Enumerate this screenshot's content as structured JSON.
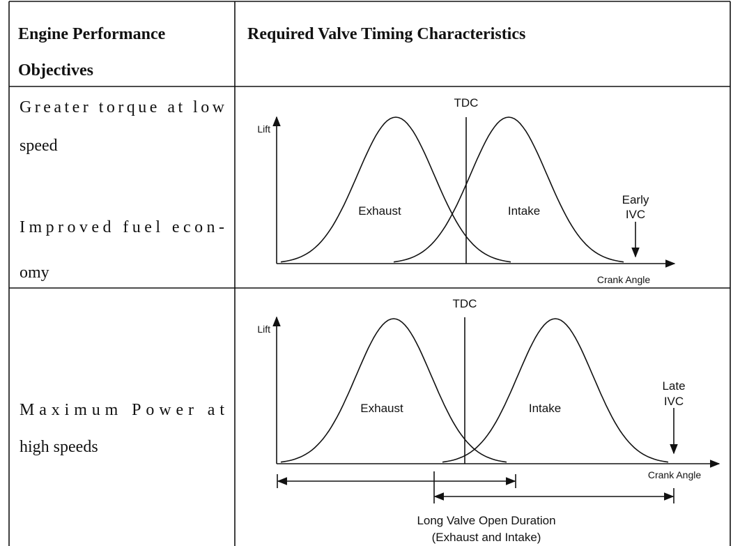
{
  "table": {
    "header": [
      [
        "Engine Performance",
        "Objectives"
      ],
      [
        "Required Valve Timing Characteristics"
      ]
    ],
    "rows": [
      {
        "objectives": [
          [
            "Greater torque at low",
            "speed"
          ],
          [
            "Improved fuel econ-",
            "omy"
          ]
        ],
        "diagram": {
          "tdc": "TDC",
          "lift": "Lift",
          "exhaust": "Exhaust",
          "intake": "Intake",
          "ivc": [
            "Early",
            "IVC"
          ],
          "crank": "Crank Angle"
        }
      },
      {
        "objectives": [
          [
            "Maximum Power at",
            "high speeds"
          ]
        ],
        "diagram": {
          "tdc": "TDC",
          "lift": "Lift",
          "exhaust": "Exhaust",
          "intake": "Intake",
          "ivc": [
            "Late",
            "IVC"
          ],
          "crank": "Crank Angle",
          "duration": [
            "Long Valve Open Duration",
            "(Exhaust and Intake)"
          ]
        }
      }
    ]
  }
}
